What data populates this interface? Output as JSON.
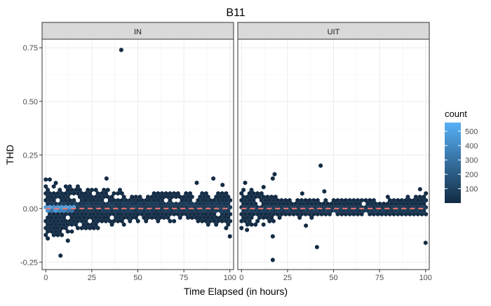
{
  "chart_data": {
    "type": "hexbin",
    "title": "B11",
    "xlabel": "Time Elapsed (in hours)",
    "ylabel": "THD",
    "xlim": [
      -2,
      102
    ],
    "ylim": [
      -0.285,
      0.79
    ],
    "x_ticks": [
      0,
      25,
      50,
      75,
      100
    ],
    "x_tick_labels": [
      "0",
      "25",
      "50",
      "75",
      "100"
    ],
    "y_ticks": [
      -0.25,
      0.0,
      0.25,
      0.5,
      0.75
    ],
    "y_tick_labels": [
      "-0.25",
      "0.00",
      "0.25",
      "0.50",
      "0.75"
    ],
    "grid": true,
    "hline": {
      "y": 0.0,
      "style": "dashed",
      "color": "#f8766d"
    },
    "colors": {
      "low": "#132b43",
      "high": "#56b1f7",
      "strip": "#d9d9d9",
      "panel_border": "#333333",
      "grid": "#ebebeb"
    },
    "legend": {
      "title": "count",
      "position": "right",
      "ticks": [
        100,
        200,
        300,
        400,
        500
      ],
      "tick_labels": [
        "100",
        "200",
        "300",
        "400",
        "500"
      ],
      "max": 560
    },
    "panels": [
      {
        "label": "IN",
        "dense_band": {
          "x": [
            0,
            100
          ],
          "y_center": 0.0,
          "half_width": 0.025
        },
        "band_extent": [
          {
            "x": 0,
            "ymin": -0.16,
            "ymax": 0.14
          },
          {
            "x": 10,
            "ymin": -0.12,
            "ymax": 0.12
          },
          {
            "x": 25,
            "ymin": -0.1,
            "ymax": 0.1
          },
          {
            "x": 40,
            "ymin": -0.08,
            "ymax": 0.09
          },
          {
            "x": 50,
            "ymin": -0.06,
            "ymax": 0.07
          },
          {
            "x": 75,
            "ymin": -0.06,
            "ymax": 0.08
          },
          {
            "x": 100,
            "ymin": -0.1,
            "ymax": 0.07
          }
        ],
        "hot_region": {
          "x": [
            0,
            16
          ],
          "y": [
            -0.015,
            0.015
          ],
          "count": 520
        },
        "outliers": [
          {
            "x": 41,
            "y": 0.74
          },
          {
            "x": 8,
            "y": -0.22
          },
          {
            "x": 33,
            "y": 0.14
          },
          {
            "x": 91,
            "y": 0.14
          },
          {
            "x": 96,
            "y": 0.11
          },
          {
            "x": 82,
            "y": 0.12
          },
          {
            "x": 12,
            "y": -0.15
          },
          {
            "x": 100,
            "y": -0.13
          }
        ]
      },
      {
        "label": "UIT",
        "dense_band": {
          "x": [
            0,
            100
          ],
          "y_center": 0.0,
          "half_width": 0.015
        },
        "band_extent": [
          {
            "x": 0,
            "ymin": -0.1,
            "ymax": 0.1
          },
          {
            "x": 25,
            "ymin": -0.05,
            "ymax": 0.05
          },
          {
            "x": 50,
            "ymin": -0.04,
            "ymax": 0.05
          },
          {
            "x": 75,
            "ymin": -0.04,
            "ymax": 0.05
          },
          {
            "x": 100,
            "ymin": -0.04,
            "ymax": 0.08
          }
        ],
        "hot_region": {
          "x": [
            0,
            100
          ],
          "y": [
            -0.005,
            0.005
          ],
          "count": 60
        },
        "outliers": [
          {
            "x": 17,
            "y": 0.14
          },
          {
            "x": 18,
            "y": 0.16
          },
          {
            "x": 43,
            "y": 0.2
          },
          {
            "x": 17,
            "y": -0.24
          },
          {
            "x": 17,
            "y": -0.13
          },
          {
            "x": 41,
            "y": -0.18
          },
          {
            "x": 100,
            "y": -0.16
          },
          {
            "x": 35,
            "y": -0.08
          },
          {
            "x": 3,
            "y": -0.1
          },
          {
            "x": 2,
            "y": 0.12
          },
          {
            "x": 12,
            "y": 0.1
          },
          {
            "x": 45,
            "y": 0.08
          },
          {
            "x": 97,
            "y": 0.09
          },
          {
            "x": 33,
            "y": 0.07
          }
        ]
      }
    ]
  }
}
